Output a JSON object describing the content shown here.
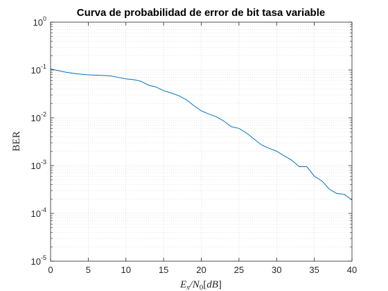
{
  "chart_data": {
    "type": "line",
    "title": "Curva de probabilidad de error de bit tasa variable",
    "xlabel": "E_s/N_0[dB]",
    "xlabel_parts": {
      "E": "E",
      "s": "s",
      "slash": "/N",
      "zero": "0",
      "bracket_open": "[",
      "dB": "dB",
      "bracket_close": "]"
    },
    "ylabel": "BER",
    "xlim": [
      0,
      40
    ],
    "ylim": [
      1e-05,
      1
    ],
    "yscale": "log",
    "grid": true,
    "minor_grid": true,
    "x_ticks": [
      "0",
      "5",
      "10",
      "15",
      "20",
      "25",
      "30",
      "35",
      "40"
    ],
    "y_ticks": [
      {
        "base": "10",
        "exp": "0"
      },
      {
        "base": "10",
        "exp": "-1"
      },
      {
        "base": "10",
        "exp": "-2"
      },
      {
        "base": "10",
        "exp": "-3"
      },
      {
        "base": "10",
        "exp": "-4"
      },
      {
        "base": "10",
        "exp": "-5"
      }
    ],
    "line_color": "#0072bd",
    "series": [
      {
        "x": [
          0,
          1,
          2,
          3,
          4,
          5,
          6,
          7,
          8,
          9,
          10,
          11,
          12,
          13,
          14,
          15,
          16,
          17,
          18,
          19,
          20,
          21,
          22,
          23,
          24,
          25,
          26,
          27,
          28,
          29,
          30,
          31,
          32,
          33,
          34,
          35,
          36,
          37,
          38,
          39,
          40
        ],
        "y": [
          0.105,
          0.097,
          0.09,
          0.085,
          0.082,
          0.079,
          0.078,
          0.077,
          0.075,
          0.07,
          0.065,
          0.063,
          0.058,
          0.048,
          0.044,
          0.037,
          0.033,
          0.029,
          0.024,
          0.018,
          0.014,
          0.012,
          0.0105,
          0.0085,
          0.0065,
          0.006,
          0.0048,
          0.0036,
          0.0027,
          0.0023,
          0.002,
          0.0016,
          0.0013,
          0.00095,
          0.00095,
          0.0006,
          0.00048,
          0.00032,
          0.00026,
          0.00025,
          0.00019
        ]
      }
    ]
  }
}
